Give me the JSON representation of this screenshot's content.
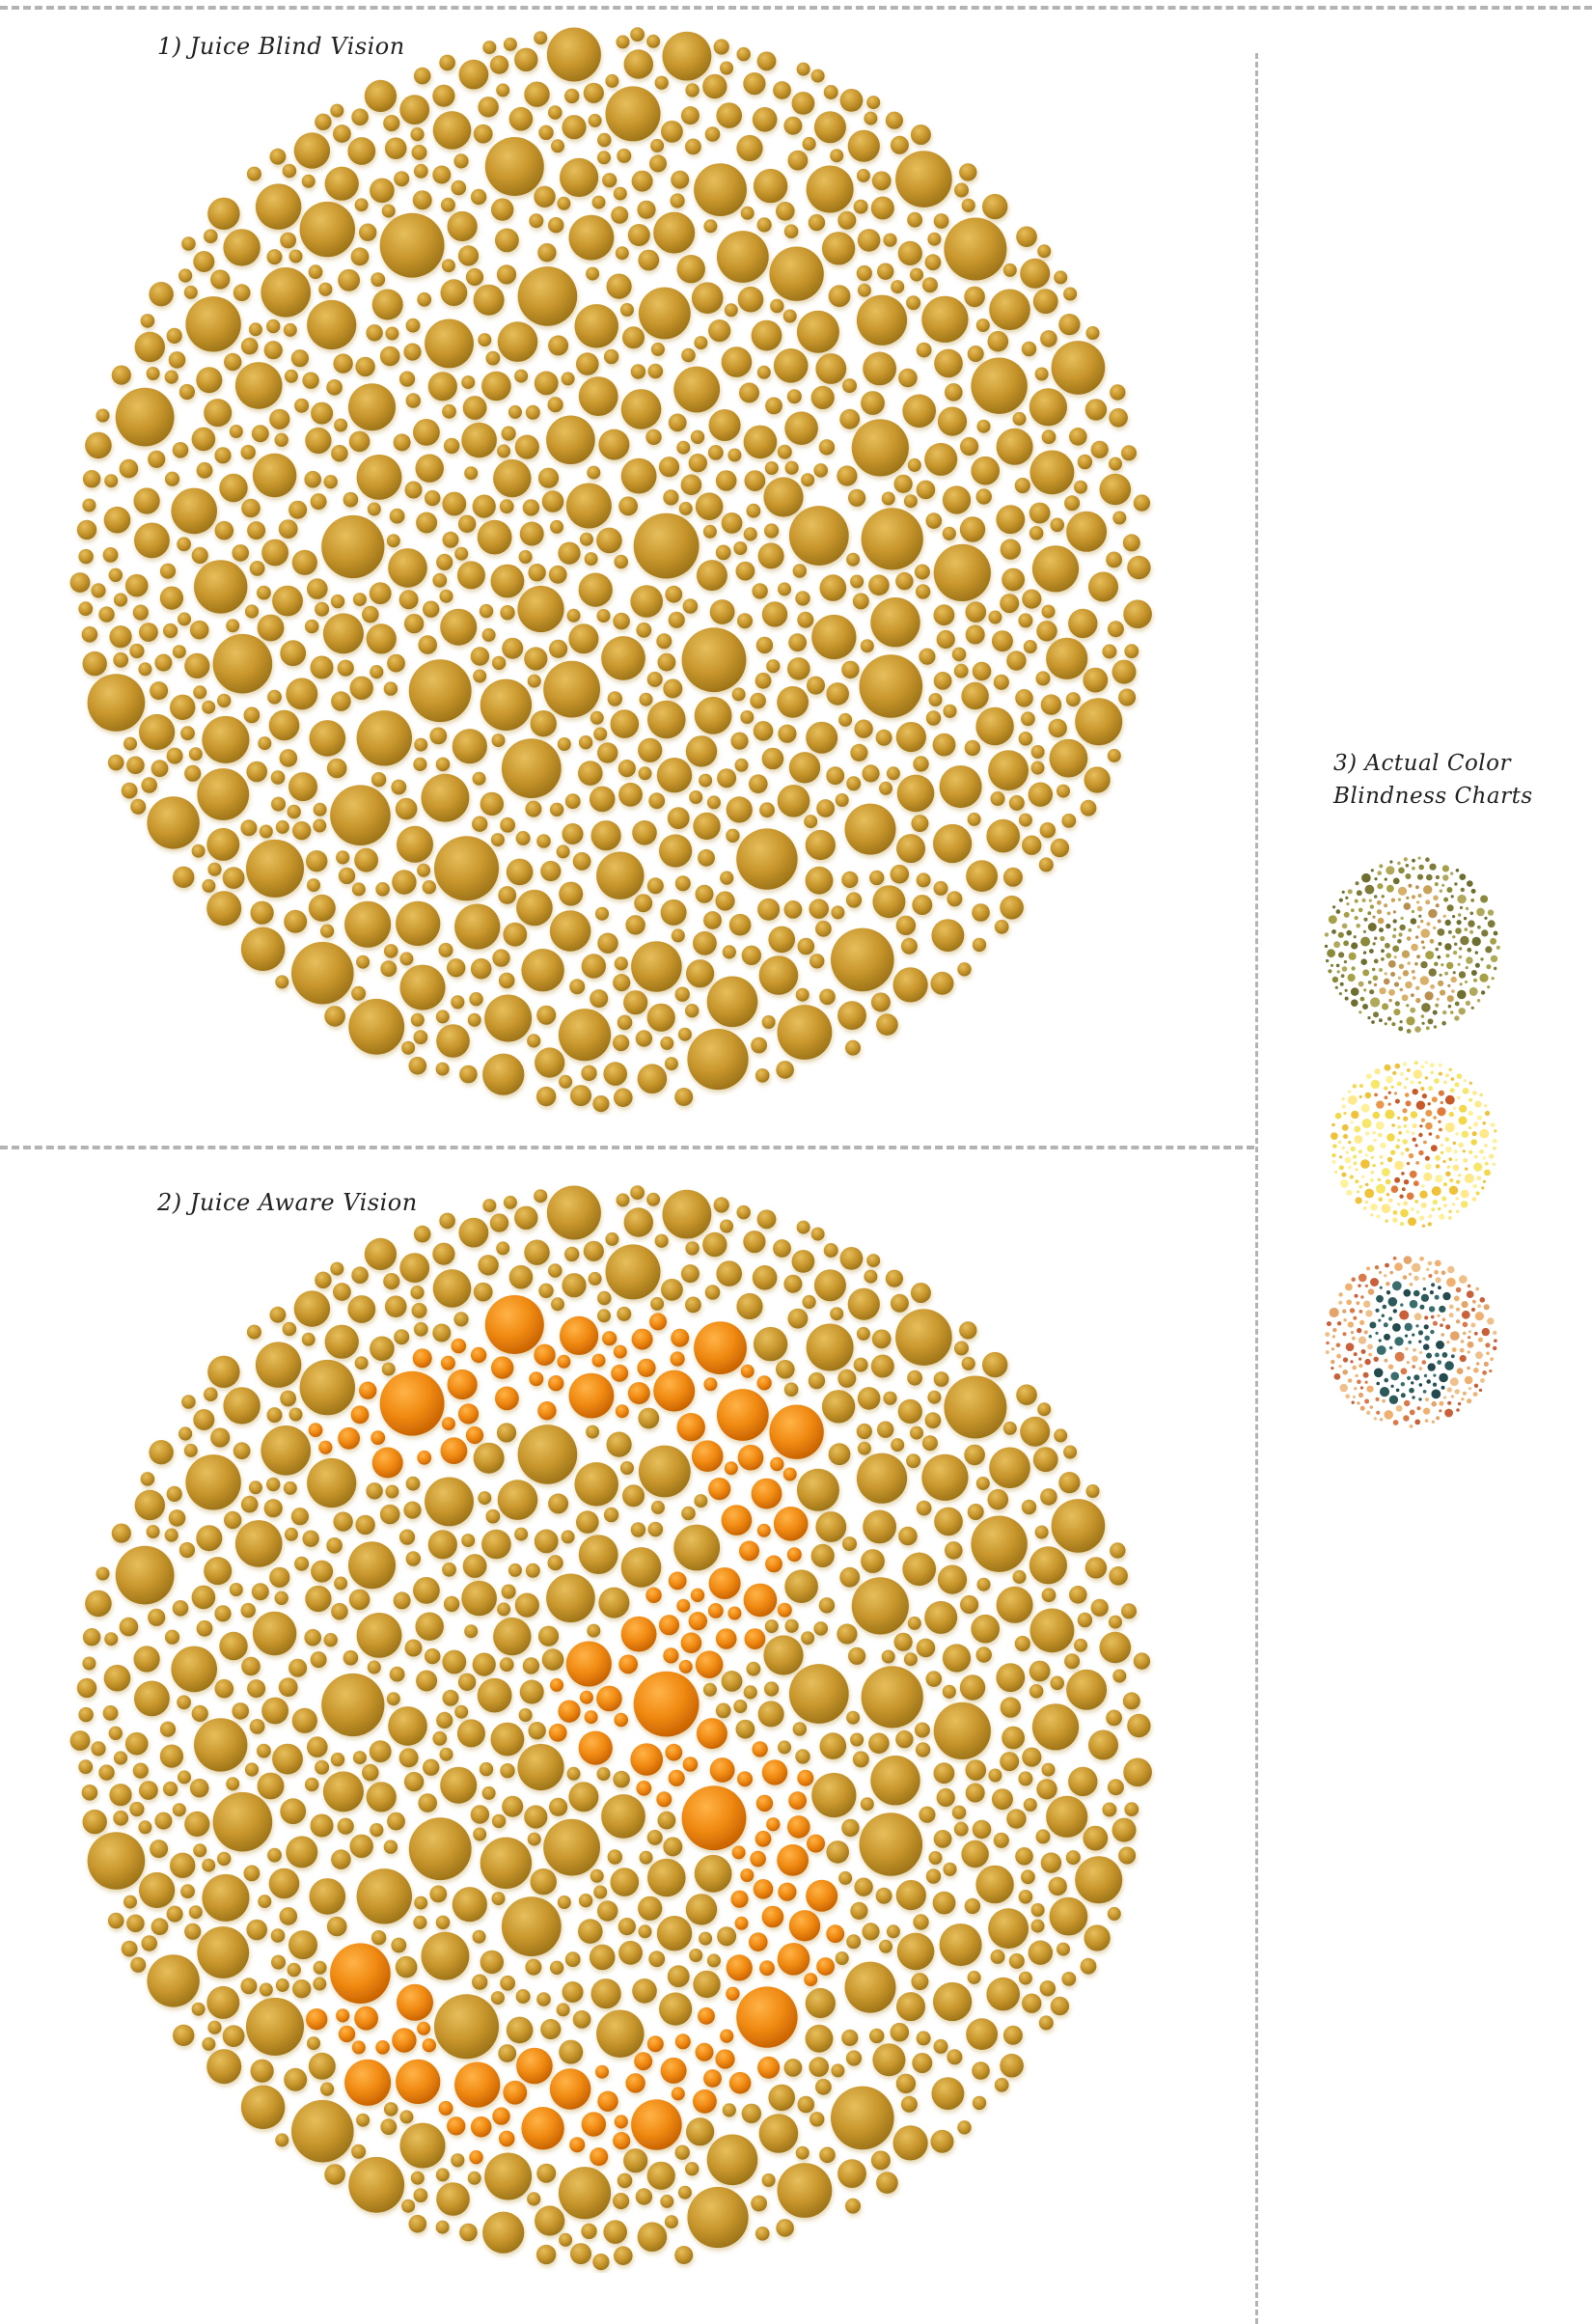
{
  "sections": {
    "blind": {
      "label": "1) Juice Blind Vision"
    },
    "aware": {
      "label": "2) Juice Aware Vision"
    },
    "actual": {
      "label_line1": "3) Actual Color",
      "label_line2": "Blindness Charts"
    }
  },
  "colors": {
    "gold_base": "#C9972D",
    "gold_light": "#E6BE5C",
    "gold_dark": "#9E7418",
    "orange_base": "#F08A12",
    "orange_light": "#FFB347",
    "orange_dark": "#C86200",
    "divider": "#b3b3b3"
  },
  "plates": {
    "main_figure_digit": "3",
    "actual_charts": [
      {
        "name": "chart-olive",
        "background": [
          "#8a8a3a",
          "#a6a048",
          "#6e6e30",
          "#b0a85a",
          "#7d7a3a"
        ],
        "figure": [
          "#c9a35a",
          "#d8b06a",
          "#b98f52"
        ]
      },
      {
        "name": "chart-yellow",
        "background": [
          "#f6e66a",
          "#f3d84a",
          "#ffe98a",
          "#f0c23a",
          "#fff09a"
        ],
        "figure": [
          "#e07a3a",
          "#c85a2a",
          "#e89a4a"
        ]
      },
      {
        "name": "chart-red-green",
        "background": [
          "#e5a56a",
          "#d97a4a",
          "#efc08a",
          "#c9603a",
          "#f0b070"
        ],
        "figure": [
          "#2c5a5a",
          "#3a6e6e",
          "#244a50"
        ]
      }
    ]
  }
}
